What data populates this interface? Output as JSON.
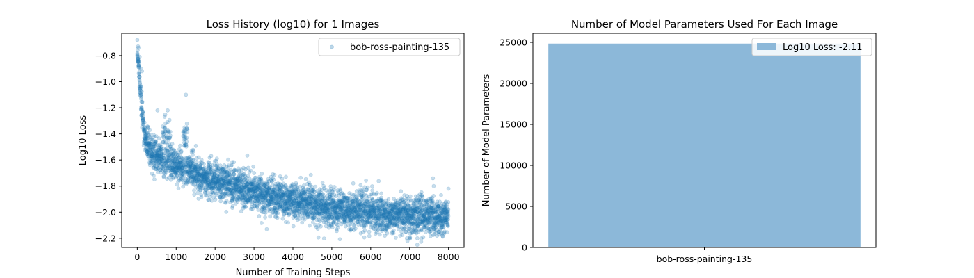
{
  "colors": {
    "scatter": "#1f77b4",
    "bar": "#8cb8d9",
    "axis": "#000000"
  },
  "chart_data": [
    {
      "type": "scatter",
      "title": "Loss History (log10) for 1 Images",
      "xlabel": "Number of Training Steps",
      "ylabel": "Log10 Loss",
      "xlim": [
        -400,
        8400
      ],
      "ylim": [
        -2.27,
        -0.63
      ],
      "xticks": [
        0,
        1000,
        2000,
        3000,
        4000,
        5000,
        6000,
        7000,
        8000
      ],
      "yticks": [
        -2.2,
        -2.0,
        -1.8,
        -1.6,
        -1.4,
        -1.2,
        -1.0,
        -0.8
      ],
      "legend": "top-right",
      "series": [
        {
          "name": "bob-ross-painting-135",
          "alpha": 0.25,
          "n_points": 8000,
          "trend": [
            [
              0,
              -0.75
            ],
            [
              50,
              -0.95
            ],
            [
              100,
              -1.15
            ],
            [
              150,
              -1.3
            ],
            [
              200,
              -1.42
            ],
            [
              300,
              -1.52
            ],
            [
              500,
              -1.58
            ],
            [
              700,
              -1.6
            ],
            [
              1000,
              -1.64
            ],
            [
              1500,
              -1.7
            ],
            [
              2000,
              -1.76
            ],
            [
              3000,
              -1.85
            ],
            [
              4000,
              -1.92
            ],
            [
              5000,
              -1.97
            ],
            [
              6000,
              -2.0
            ],
            [
              7000,
              -2.02
            ],
            [
              8000,
              -2.04
            ]
          ],
          "spread": [
            [
              0,
              0.03
            ],
            [
              200,
              0.07
            ],
            [
              1000,
              0.06
            ],
            [
              2000,
              0.07
            ],
            [
              4000,
              0.07
            ],
            [
              6000,
              0.07
            ],
            [
              8000,
              0.07
            ]
          ],
          "clusters": [
            {
              "x_range": [
                650,
                850
              ],
              "y_center": -1.39,
              "y_spread": 0.05
            },
            {
              "x_range": [
                1180,
                1290
              ],
              "y_center": -1.42,
              "y_spread": 0.05
            }
          ],
          "outliers": [
            [
              0,
              -0.68
            ],
            [
              20,
              -0.73
            ],
            [
              30,
              -0.74
            ],
            [
              60,
              -0.81
            ],
            [
              100,
              -0.9
            ],
            [
              120,
              -0.92
            ],
            [
              520,
              -1.22
            ],
            [
              780,
              -1.22
            ],
            [
              1250,
              -1.1
            ],
            [
              1270,
              -1.36
            ],
            [
              7600,
              -1.74
            ],
            [
              8000,
              -1.82
            ],
            [
              7200,
              -2.2
            ],
            [
              6900,
              -2.15
            ]
          ]
        }
      ]
    },
    {
      "type": "bar",
      "title": "Number of Model Parameters Used For Each Image",
      "xlabel": "",
      "ylabel": "Number of Model Parameters",
      "categories": [
        "bob-ross-painting-135"
      ],
      "values": [
        24850
      ],
      "ylim": [
        0,
        26100
      ],
      "yticks": [
        0,
        5000,
        10000,
        15000,
        20000,
        25000
      ],
      "legend": "top-right",
      "series": [
        {
          "name": "Log10 Loss: -2.11",
          "values": [
            24850
          ]
        }
      ]
    }
  ]
}
